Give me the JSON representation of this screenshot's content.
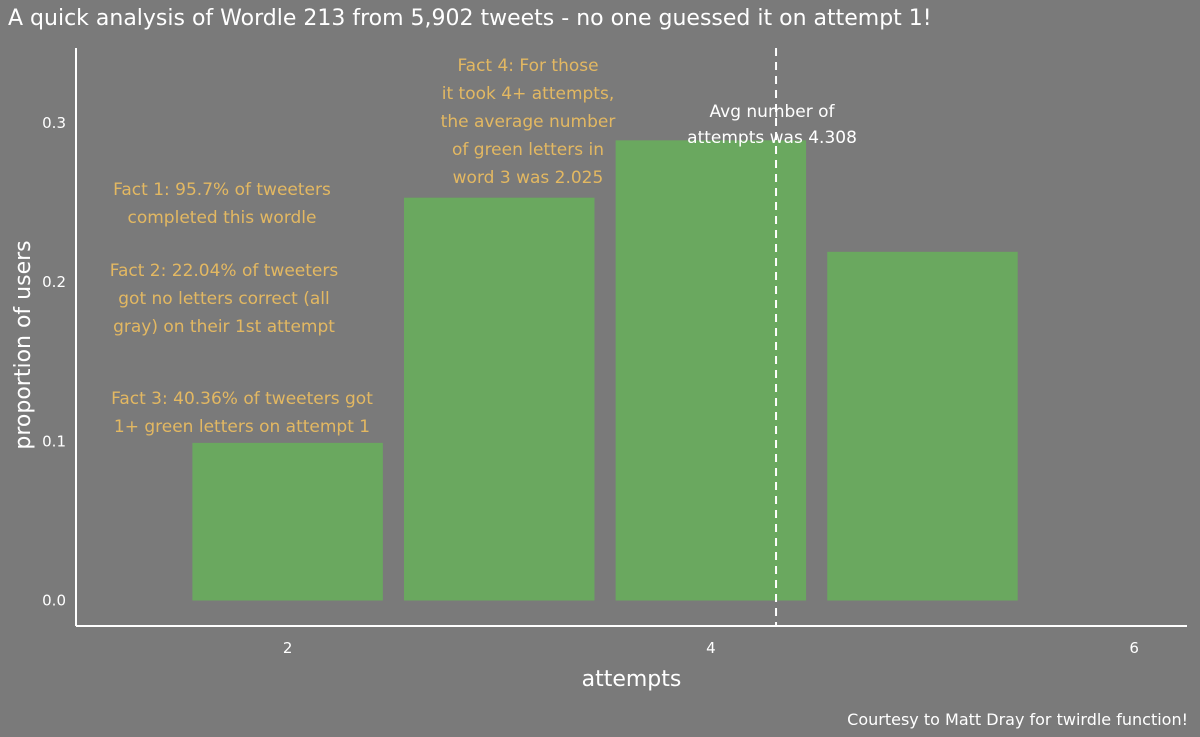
{
  "title": "A quick analysis of Wordle 213 from 5,902 tweets - no one guessed it on attempt 1!",
  "caption": "Courtesy to Matt Dray for twirdle function!",
  "colors": {
    "background": "#7a7a7a",
    "bar": "#6aa85f",
    "fact_text": "#e3b862",
    "axis": "#ffffff"
  },
  "chart_data": {
    "type": "bar",
    "xlabel": "attempts",
    "ylabel": "proportion of users",
    "x": [
      2,
      3,
      4,
      5
    ],
    "values": [
      0.099,
      0.253,
      0.289,
      0.219
    ],
    "xticks": [
      2,
      4,
      6
    ],
    "xtick_labels": [
      "2",
      "4",
      "6"
    ],
    "yticks": [
      0.0,
      0.1,
      0.2,
      0.3
    ],
    "ytick_labels": [
      "0.0",
      "0.1",
      "0.2",
      "0.3"
    ],
    "xlim": [
      1.0,
      6.25
    ],
    "ylim": [
      -0.016,
      0.347
    ],
    "grid": false,
    "mean_line": {
      "x": 4.308,
      "label_lines": [
        "Avg number of",
        "attempts was 4.308"
      ]
    },
    "annotations": [
      {
        "id": "fact1",
        "lines": [
          "Fact 1: 95.7% of tweeters",
          "completed this wordle"
        ]
      },
      {
        "id": "fact2",
        "lines": [
          "Fact 2: 22.04% of tweeters",
          "got no letters correct (all",
          "gray) on their 1st attempt"
        ]
      },
      {
        "id": "fact3",
        "lines": [
          "Fact 3: 40.36% of tweeters got",
          "1+ green letters on attempt 1"
        ]
      },
      {
        "id": "fact4",
        "lines": [
          "Fact 4: For those",
          "it took 4+ attempts,",
          "the average number",
          "of green letters in",
          "word 3 was 2.025"
        ]
      }
    ]
  }
}
